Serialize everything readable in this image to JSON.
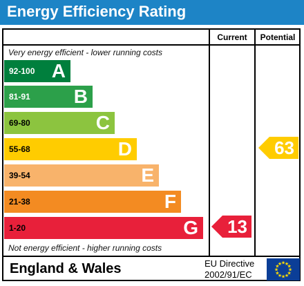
{
  "header": {
    "title": "Energy Efficiency Rating"
  },
  "columns": {
    "current": "Current",
    "potential": "Potential"
  },
  "notes": {
    "top": "Very energy efficient - lower running costs",
    "bottom": "Not energy efficient - higher running costs"
  },
  "bands": [
    {
      "range": "92-100",
      "letter": "A",
      "color": "#007f3d",
      "range_color": "#ffffff"
    },
    {
      "range": "81-91",
      "letter": "B",
      "color": "#2ca04a",
      "range_color": "#ffffff"
    },
    {
      "range": "69-80",
      "letter": "C",
      "color": "#8cc43f",
      "range_color": "#000000"
    },
    {
      "range": "55-68",
      "letter": "D",
      "color": "#ffcc00",
      "range_color": "#000000"
    },
    {
      "range": "39-54",
      "letter": "E",
      "color": "#f8b36b",
      "range_color": "#000000"
    },
    {
      "range": "21-38",
      "letter": "F",
      "color": "#f38b22",
      "range_color": "#000000"
    },
    {
      "range": "1-20",
      "letter": "G",
      "color": "#e8203a",
      "range_color": "#000000"
    }
  ],
  "ratings": {
    "current": {
      "value": "13",
      "band": "G",
      "color": "#e8203a"
    },
    "potential": {
      "value": "63",
      "band": "D",
      "color": "#ffcc00"
    }
  },
  "footer": {
    "country": "England & Wales",
    "directive_line1": "EU Directive",
    "directive_line2": "2002/91/EC"
  },
  "flag_icon": "eu-flag-icon"
}
